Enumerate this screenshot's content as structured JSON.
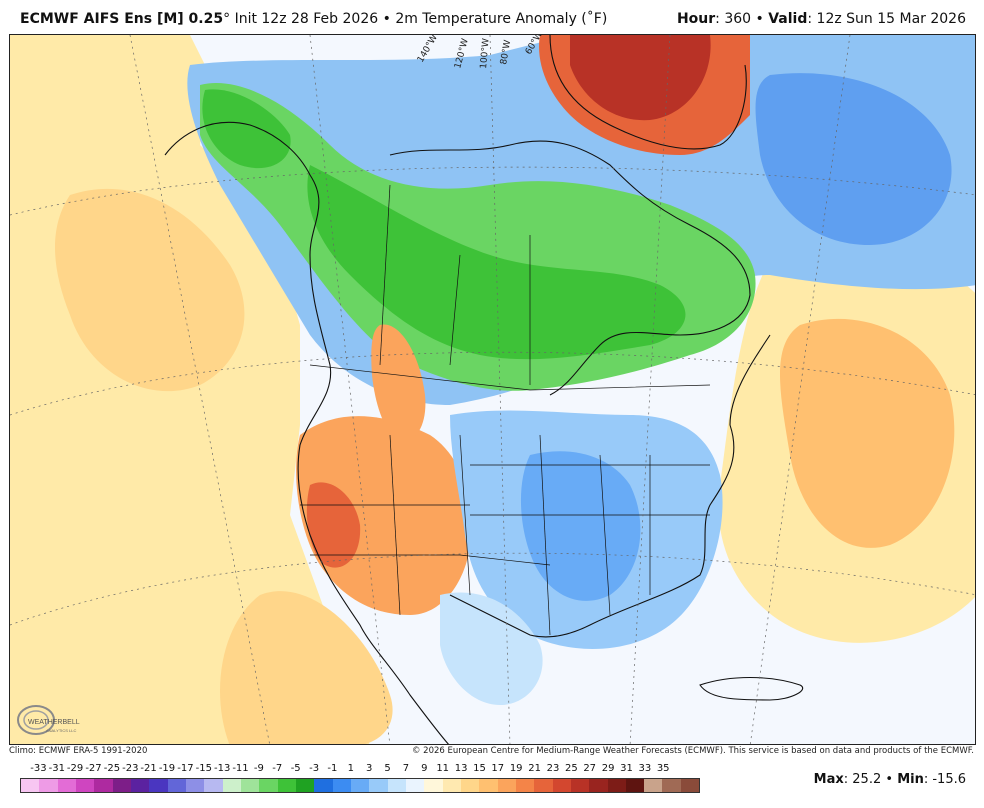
{
  "header": {
    "model": "ECMWF AIFS Ens [M] 0.25",
    "degree_mark": "°",
    "init": "Init 12z 28 Feb 2026",
    "bullet": "•",
    "field": "2m Temperature Anomaly (˚F)",
    "hour_label": "Hour",
    "hour_value": ": 360",
    "valid_label": "Valid",
    "valid_value": ": 12z Sun 15 Mar 2026"
  },
  "map": {
    "longitude_labels": [
      "140°W",
      "120°W",
      "100°W",
      "80°W",
      "60°W"
    ],
    "logo_text": "WEATHERBELL",
    "logo_sub": "ANALYTICS LLC"
  },
  "credits": {
    "climo": "Climo: ECMWF ERA-5 1991-2020",
    "copyright": "© 2026 European Centre for Medium-Range Weather Forecasts (ECMWF). This service is based on data and products of the ECMWF."
  },
  "colorbar": {
    "labels": [
      "-33",
      "-31",
      "-29",
      "-27",
      "-25",
      "-23",
      "-21",
      "-19",
      "-17",
      "-15",
      "-13",
      "-11",
      "-9",
      "-7",
      "-5",
      "-3",
      "-1",
      "1",
      "3",
      "5",
      "7",
      "9",
      "11",
      "13",
      "15",
      "17",
      "19",
      "21",
      "23",
      "25",
      "27",
      "29",
      "31",
      "33",
      "35"
    ],
    "colors": [
      "#f7b8f0",
      "#ee8be3",
      "#e05fd2",
      "#c83cb8",
      "#a62a98",
      "#7a1f86",
      "#5a248e",
      "#4a2fb0",
      "#5d52d0",
      "#7f7fe0",
      "#a4a6ee",
      "#bfe8c0",
      "#9fe39a",
      "#6fd468",
      "#45c13c",
      "#21a323",
      "#1d6fdd",
      "#3b8bf0",
      "#65a9f5",
      "#93c6f8",
      "#bfe0fb",
      "#e4f1fd",
      "#fff6d6",
      "#ffe6a2",
      "#ffd07a",
      "#ffb866",
      "#f99a55",
      "#ef7a44",
      "#e05a36",
      "#c93c2b",
      "#ad2a22",
      "#8c1f1b",
      "#6e1813",
      "#c5a48a",
      "#a87050"
    ],
    "scale_colors": [
      "#f7c6f2",
      "#ee9be6",
      "#e36cd6",
      "#cf45c0",
      "#ae2aa0",
      "#7d1e88",
      "#5b22a0",
      "#4a36c0",
      "#6266d8",
      "#8d8fe6",
      "#b7b9f1",
      "#cdf0cb",
      "#9fe39a",
      "#6ad563",
      "#3ec238",
      "#1fa222",
      "#1f6fe0",
      "#3c8cf2",
      "#68abf6",
      "#98caf9",
      "#c6e4fc",
      "#eaf4fe",
      "#fff7da",
      "#ffe9b0",
      "#ffd68a",
      "#ffc070",
      "#fba45c",
      "#f48448",
      "#e6643a",
      "#d3472f",
      "#b83226",
      "#99241f",
      "#7d1c17",
      "#5e1410",
      "#c9a38b",
      "#a06a55",
      "#8a4b3a"
    ]
  },
  "stats": {
    "max_label": "Max",
    "max_value": ": 25.2",
    "sep": "•",
    "min_label": "Min",
    "min_value": ": -15.6"
  }
}
